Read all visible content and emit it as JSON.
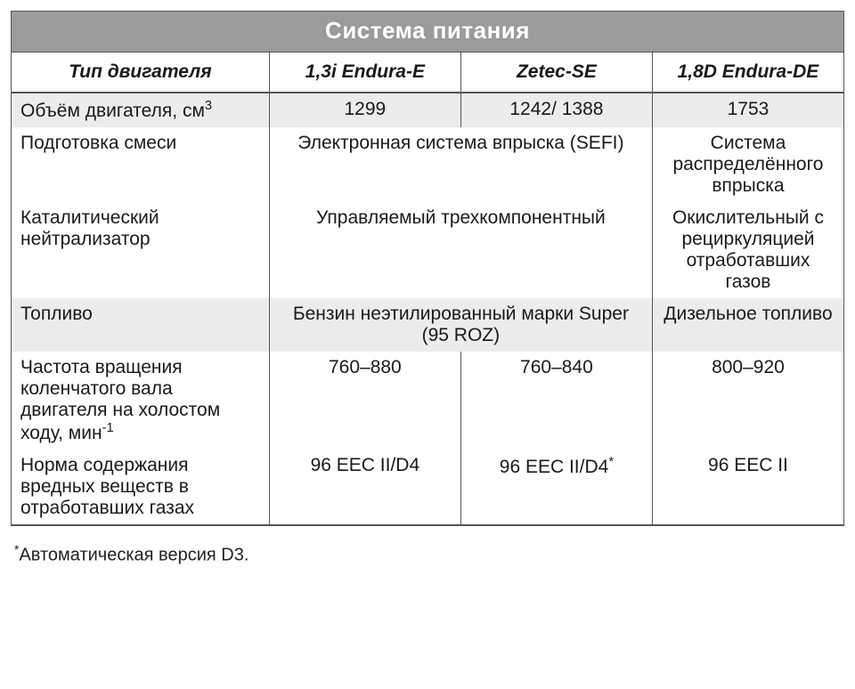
{
  "title": "Система питания",
  "columns": {
    "c0": "Тип двигателя",
    "c1": "1,3i Endura-E",
    "c2": "Zetec-SE",
    "c3": "1,8D Endura-DE"
  },
  "rows": {
    "r0": {
      "label_pre": "Объём двигателя, см",
      "label_sup": "3",
      "v1": "1299",
      "v2": "1242/ 1388",
      "v3": "1753"
    },
    "r1": {
      "label": "Подготовка смеси",
      "v12": "Электронная система впрыска (SEFI)",
      "v3": "Система распределённого впрыска"
    },
    "r2": {
      "label": "Каталитический нейтрализатор",
      "v12": "Управляемый трехкомпонентный",
      "v3": "Окислительный с рециркуляцией отработавших газов"
    },
    "r3": {
      "label": "Топливо",
      "v12": "Бензин неэтилированный марки Super (95 ROZ)",
      "v3": "Дизельное топливо"
    },
    "r4": {
      "label_pre": "Частота вращения коленчатого вала двигателя на холостом ходу, мин",
      "label_sup": "-1",
      "v1": "760–880",
      "v2": "760–840",
      "v3": "800–920"
    },
    "r5": {
      "label": "Норма содержания вредных веществ в отработавших газах",
      "v1": "96 EEC II/D4",
      "v2_pre": "96 EEC II/D4",
      "v2_sup": "*",
      "v3": "96 EEC II"
    }
  },
  "footnote_pre": "*",
  "footnote": "Автоматическая версия D3."
}
